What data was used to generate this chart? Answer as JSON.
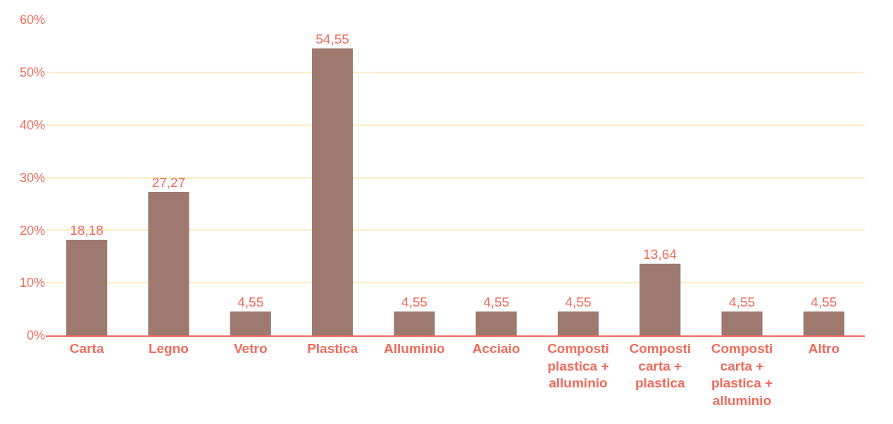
{
  "chart_data": {
    "type": "bar",
    "categories": [
      "Carta",
      "Legno",
      "Vetro",
      "Plastica",
      "Alluminio",
      "Acciaio",
      "Composti plastica + alluminio",
      "Composti carta + plastica",
      "Composti carta + plastica + alluminio",
      "Altro"
    ],
    "values": [
      18.18,
      27.27,
      4.55,
      54.55,
      4.55,
      4.55,
      4.55,
      13.64,
      4.55,
      4.55
    ],
    "value_labels": [
      "18,18",
      "27,27",
      "4,55",
      "54,55",
      "4,55",
      "4,55",
      "4,55",
      "13,64",
      "4,55",
      "4,55"
    ],
    "color": "#9e7970",
    "ylim": [
      0,
      60
    ],
    "yticks": [
      {
        "value": 0,
        "label": "0%"
      },
      {
        "value": 10,
        "label": "10%"
      },
      {
        "value": 20,
        "label": "20%"
      },
      {
        "value": 30,
        "label": "30%"
      },
      {
        "value": 40,
        "label": "40%"
      },
      {
        "value": 50,
        "label": "50%"
      },
      {
        "value": 60,
        "label": "60%"
      }
    ],
    "grid": "y"
  }
}
